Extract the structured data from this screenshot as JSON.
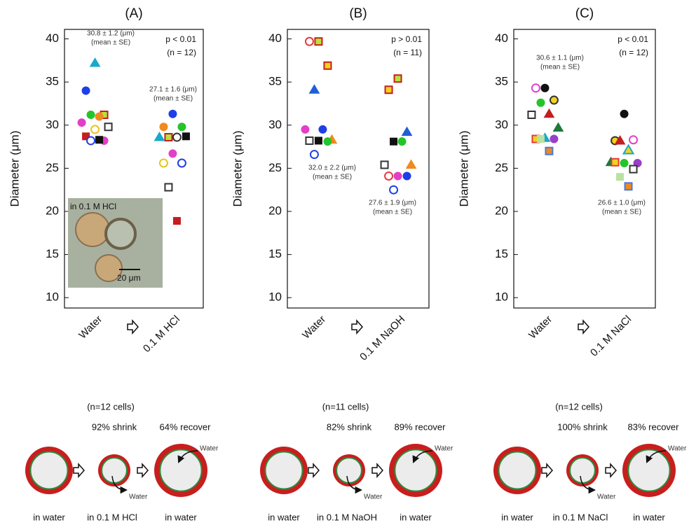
{
  "chart_data": [
    {
      "type": "dot",
      "title": "(A)",
      "ylabel": "Diameter (μm)",
      "categories": [
        "Water",
        "0.1 M HCl"
      ],
      "ylim": [
        8.8,
        41.1
      ],
      "yticks": [
        10,
        15,
        20,
        25,
        30,
        35,
        40
      ],
      "p_value": "p < 0.01",
      "n": "(n = 12)",
      "means": [
        "30.8 ± 1.2 (μm)",
        "27.1 ± 1.6 (μm)"
      ],
      "mean_note": "(mean ± SE)",
      "inset": {
        "label": "in 0.1 M HCl",
        "scale": "20 μm"
      },
      "points": [
        [
          {
            "value": 37.2,
            "color": "#19a9c9",
            "edge": "#19a9c9",
            "shape": "triangle"
          },
          {
            "value": 34.0,
            "color": "#1f3fe6",
            "edge": "#1f3fe6",
            "shape": "circle"
          },
          {
            "value": 31.2,
            "color": "#b9e23b",
            "edge": "#c41e1e",
            "shape": "square"
          },
          {
            "value": 31.2,
            "color": "#25c42b",
            "edge": "#25c42b",
            "shape": "circle"
          },
          {
            "value": 31.0,
            "color": "#f08a1e",
            "edge": "#f08a1e",
            "shape": "circle"
          },
          {
            "value": 30.3,
            "color": "#e23fc8",
            "edge": "#e23fc8",
            "shape": "circle"
          },
          {
            "value": 29.8,
            "color": "#ffffff",
            "edge": "#333333",
            "shape": "square"
          },
          {
            "value": 29.5,
            "color": "#ffffff",
            "edge": "#e8c41e",
            "shape": "circle"
          },
          {
            "value": 28.7,
            "color": "#c41e1e",
            "edge": "#c41e1e",
            "shape": "square"
          },
          {
            "value": 28.2,
            "color": "#e23fc8",
            "edge": "#e23fc8",
            "shape": "circle"
          },
          {
            "value": 28.2,
            "color": "#ffffff",
            "edge": "#1f3fe6",
            "shape": "circle"
          },
          {
            "value": 28.3,
            "color": "#111111",
            "edge": "#111111",
            "shape": "square"
          }
        ],
        [
          {
            "value": 31.3,
            "color": "#1f3fe6",
            "edge": "#1f3fe6",
            "shape": "circle"
          },
          {
            "value": 29.8,
            "color": "#f08a1e",
            "edge": "#f08a1e",
            "shape": "circle"
          },
          {
            "value": 29.8,
            "color": "#25c42b",
            "edge": "#25c42b",
            "shape": "circle"
          },
          {
            "value": 28.6,
            "color": "#b9e23b",
            "edge": "#c41e1e",
            "shape": "square"
          },
          {
            "value": 28.6,
            "color": "#ffffff",
            "edge": "#333333",
            "shape": "circle"
          },
          {
            "value": 28.6,
            "color": "#19a9c9",
            "edge": "#19a9c9",
            "shape": "triangle"
          },
          {
            "value": 28.7,
            "color": "#111111",
            "edge": "#111111",
            "shape": "square"
          },
          {
            "value": 26.7,
            "color": "#e23fc8",
            "edge": "#e23fc8",
            "shape": "circle"
          },
          {
            "value": 25.6,
            "color": "#ffffff",
            "edge": "#e8c41e",
            "shape": "circle"
          },
          {
            "value": 25.6,
            "color": "#ffffff",
            "edge": "#1f3fe6",
            "shape": "circle"
          },
          {
            "value": 22.8,
            "color": "#ffffff",
            "edge": "#333333",
            "shape": "square"
          },
          {
            "value": 18.9,
            "color": "#c41e1e",
            "edge": "#c41e1e",
            "shape": "square"
          }
        ]
      ]
    },
    {
      "type": "dot",
      "title": "(B)",
      "ylabel": "Diameter (μm)",
      "categories": [
        "Water",
        "0.1 M NaOH"
      ],
      "ylim": [
        8.8,
        41.1
      ],
      "yticks": [
        10,
        15,
        20,
        25,
        30,
        35,
        40
      ],
      "p_value": "p > 0.01",
      "n": "(n = 11)",
      "means": [
        "32.0 ± 2.2 (μm)",
        "27.6 ± 1.9 (μm)"
      ],
      "mean_note": "(mean ± SE)",
      "points": [
        [
          {
            "value": 39.7,
            "color": "#b9e23b",
            "edge": "#c41e1e",
            "shape": "square"
          },
          {
            "value": 39.7,
            "color": "#ffffff",
            "edge": "#e83a3a",
            "shape": "circle"
          },
          {
            "value": 36.9,
            "color": "#f2d21e",
            "edge": "#c41e1e",
            "shape": "square"
          },
          {
            "value": 34.1,
            "color": "#1f5fd6",
            "edge": "#1f5fd6",
            "shape": "triangle"
          },
          {
            "value": 29.5,
            "color": "#1f3fe6",
            "edge": "#1f3fe6",
            "shape": "circle"
          },
          {
            "value": 29.5,
            "color": "#e23fc8",
            "edge": "#e23fc8",
            "shape": "circle"
          },
          {
            "value": 28.3,
            "color": "#f08a1e",
            "edge": "#f08a1e",
            "shape": "triangle"
          },
          {
            "value": 28.2,
            "color": "#111111",
            "edge": "#111111",
            "shape": "square"
          },
          {
            "value": 28.2,
            "color": "#ffffff",
            "edge": "#333333",
            "shape": "square"
          },
          {
            "value": 28.1,
            "color": "#25c42b",
            "edge": "#25c42b",
            "shape": "circle"
          },
          {
            "value": 26.6,
            "color": "#ffffff",
            "edge": "#1f3fe6",
            "shape": "circle"
          }
        ],
        [
          {
            "value": 35.4,
            "color": "#b9e23b",
            "edge": "#c41e1e",
            "shape": "square"
          },
          {
            "value": 34.1,
            "color": "#f2d21e",
            "edge": "#c41e1e",
            "shape": "square"
          },
          {
            "value": 29.2,
            "color": "#1f5fd6",
            "edge": "#1f5fd6",
            "shape": "triangle"
          },
          {
            "value": 28.1,
            "color": "#111111",
            "edge": "#111111",
            "shape": "square"
          },
          {
            "value": 28.1,
            "color": "#25c42b",
            "edge": "#25c42b",
            "shape": "circle"
          },
          {
            "value": 25.4,
            "color": "#ffffff",
            "edge": "#333333",
            "shape": "square"
          },
          {
            "value": 25.4,
            "color": "#f08a1e",
            "edge": "#f08a1e",
            "shape": "triangle"
          },
          {
            "value": 24.1,
            "color": "#e23fc8",
            "edge": "#e23fc8",
            "shape": "circle"
          },
          {
            "value": 24.1,
            "color": "#ffffff",
            "edge": "#e83a3a",
            "shape": "circle"
          },
          {
            "value": 24.1,
            "color": "#1f3fe6",
            "edge": "#1f3fe6",
            "shape": "circle"
          },
          {
            "value": 22.5,
            "color": "#ffffff",
            "edge": "#1f3fe6",
            "shape": "circle"
          }
        ]
      ]
    },
    {
      "type": "dot",
      "title": "(C)",
      "ylabel": "Diameter (μm)",
      "categories": [
        "Water",
        "0.1 M NaCl"
      ],
      "ylim": [
        8.8,
        41.1
      ],
      "yticks": [
        10,
        15,
        20,
        25,
        30,
        35,
        40
      ],
      "p_value": "p < 0.01",
      "n": "(n = 12)",
      "means": [
        "30.6 ± 1.1 (μm)",
        "26.6 ± 1.0 (μm)"
      ],
      "mean_note": "(mean ± SE)",
      "points": [
        [
          {
            "value": 34.3,
            "color": "#111111",
            "edge": "#111111",
            "shape": "circle"
          },
          {
            "value": 34.3,
            "color": "#ffffff",
            "edge": "#e23fc8",
            "shape": "circle"
          },
          {
            "value": 32.9,
            "color": "#f2d21e",
            "edge": "#333333",
            "shape": "circle"
          },
          {
            "value": 32.6,
            "color": "#25c42b",
            "edge": "#25c42b",
            "shape": "circle"
          },
          {
            "value": 31.3,
            "color": "#c41e1e",
            "edge": "#c41e1e",
            "shape": "triangle"
          },
          {
            "value": 31.2,
            "color": "#ffffff",
            "edge": "#333333",
            "shape": "square"
          },
          {
            "value": 29.7,
            "color": "#1f7a3a",
            "edge": "#1f7a3a",
            "shape": "triangle"
          },
          {
            "value": 28.5,
            "color": "#19a9c9",
            "edge": "#19a9c9",
            "shape": "triangle"
          },
          {
            "value": 28.4,
            "color": "#f2d21e",
            "edge": "#e83a3a",
            "shape": "square"
          },
          {
            "value": 28.4,
            "color": "#9a3fc8",
            "edge": "#9a3fc8",
            "shape": "circle"
          },
          {
            "value": 28.4,
            "color": "#b9e2a0",
            "edge": "#b9e2a0",
            "shape": "square"
          },
          {
            "value": 27.0,
            "color": "#f08a1e",
            "edge": "#4a7ad6",
            "shape": "square"
          }
        ],
        [
          {
            "value": 31.3,
            "color": "#111111",
            "edge": "#111111",
            "shape": "circle"
          },
          {
            "value": 28.2,
            "color": "#f2d21e",
            "edge": "#333333",
            "shape": "circle"
          },
          {
            "value": 28.3,
            "color": "#ffffff",
            "edge": "#e23fc8",
            "shape": "circle"
          },
          {
            "value": 28.2,
            "color": "#c41e1e",
            "edge": "#c41e1e",
            "shape": "triangle"
          },
          {
            "value": 27.1,
            "color": "#f2d21e",
            "edge": "#19a9c9",
            "shape": "triangle"
          },
          {
            "value": 25.7,
            "color": "#1f7a3a",
            "edge": "#1f7a3a",
            "shape": "triangle"
          },
          {
            "value": 25.6,
            "color": "#9a3fc8",
            "edge": "#9a3fc8",
            "shape": "circle"
          },
          {
            "value": 25.6,
            "color": "#25c42b",
            "edge": "#25c42b",
            "shape": "circle"
          },
          {
            "value": 25.7,
            "color": "#f2d21e",
            "edge": "#e83a3a",
            "shape": "square"
          },
          {
            "value": 24.9,
            "color": "#ffffff",
            "edge": "#333333",
            "shape": "square"
          },
          {
            "value": 24.0,
            "color": "#b9e2a0",
            "edge": "#b9e2a0",
            "shape": "square"
          },
          {
            "value": 22.9,
            "color": "#f08a1e",
            "edge": "#4a7ad6",
            "shape": "square"
          }
        ]
      ]
    }
  ],
  "diagrams": [
    {
      "cells": "(n=12 cells)",
      "shrink": "92% shrink",
      "recover": "64% recover",
      "water": "Water",
      "states": [
        "in water",
        "in 0.1 M HCl",
        "in water"
      ]
    },
    {
      "cells": "(n=11 cells)",
      "shrink": "82% shrink",
      "recover": "89% recover",
      "water": "Water",
      "states": [
        "in water",
        "in 0.1 M NaOH",
        "in water"
      ]
    },
    {
      "cells": "(n=12 cells)",
      "shrink": "100% shrink",
      "recover": "83% recover",
      "water": "Water",
      "states": [
        "in water",
        "in 0.1 M NaCl",
        "in water"
      ]
    }
  ]
}
